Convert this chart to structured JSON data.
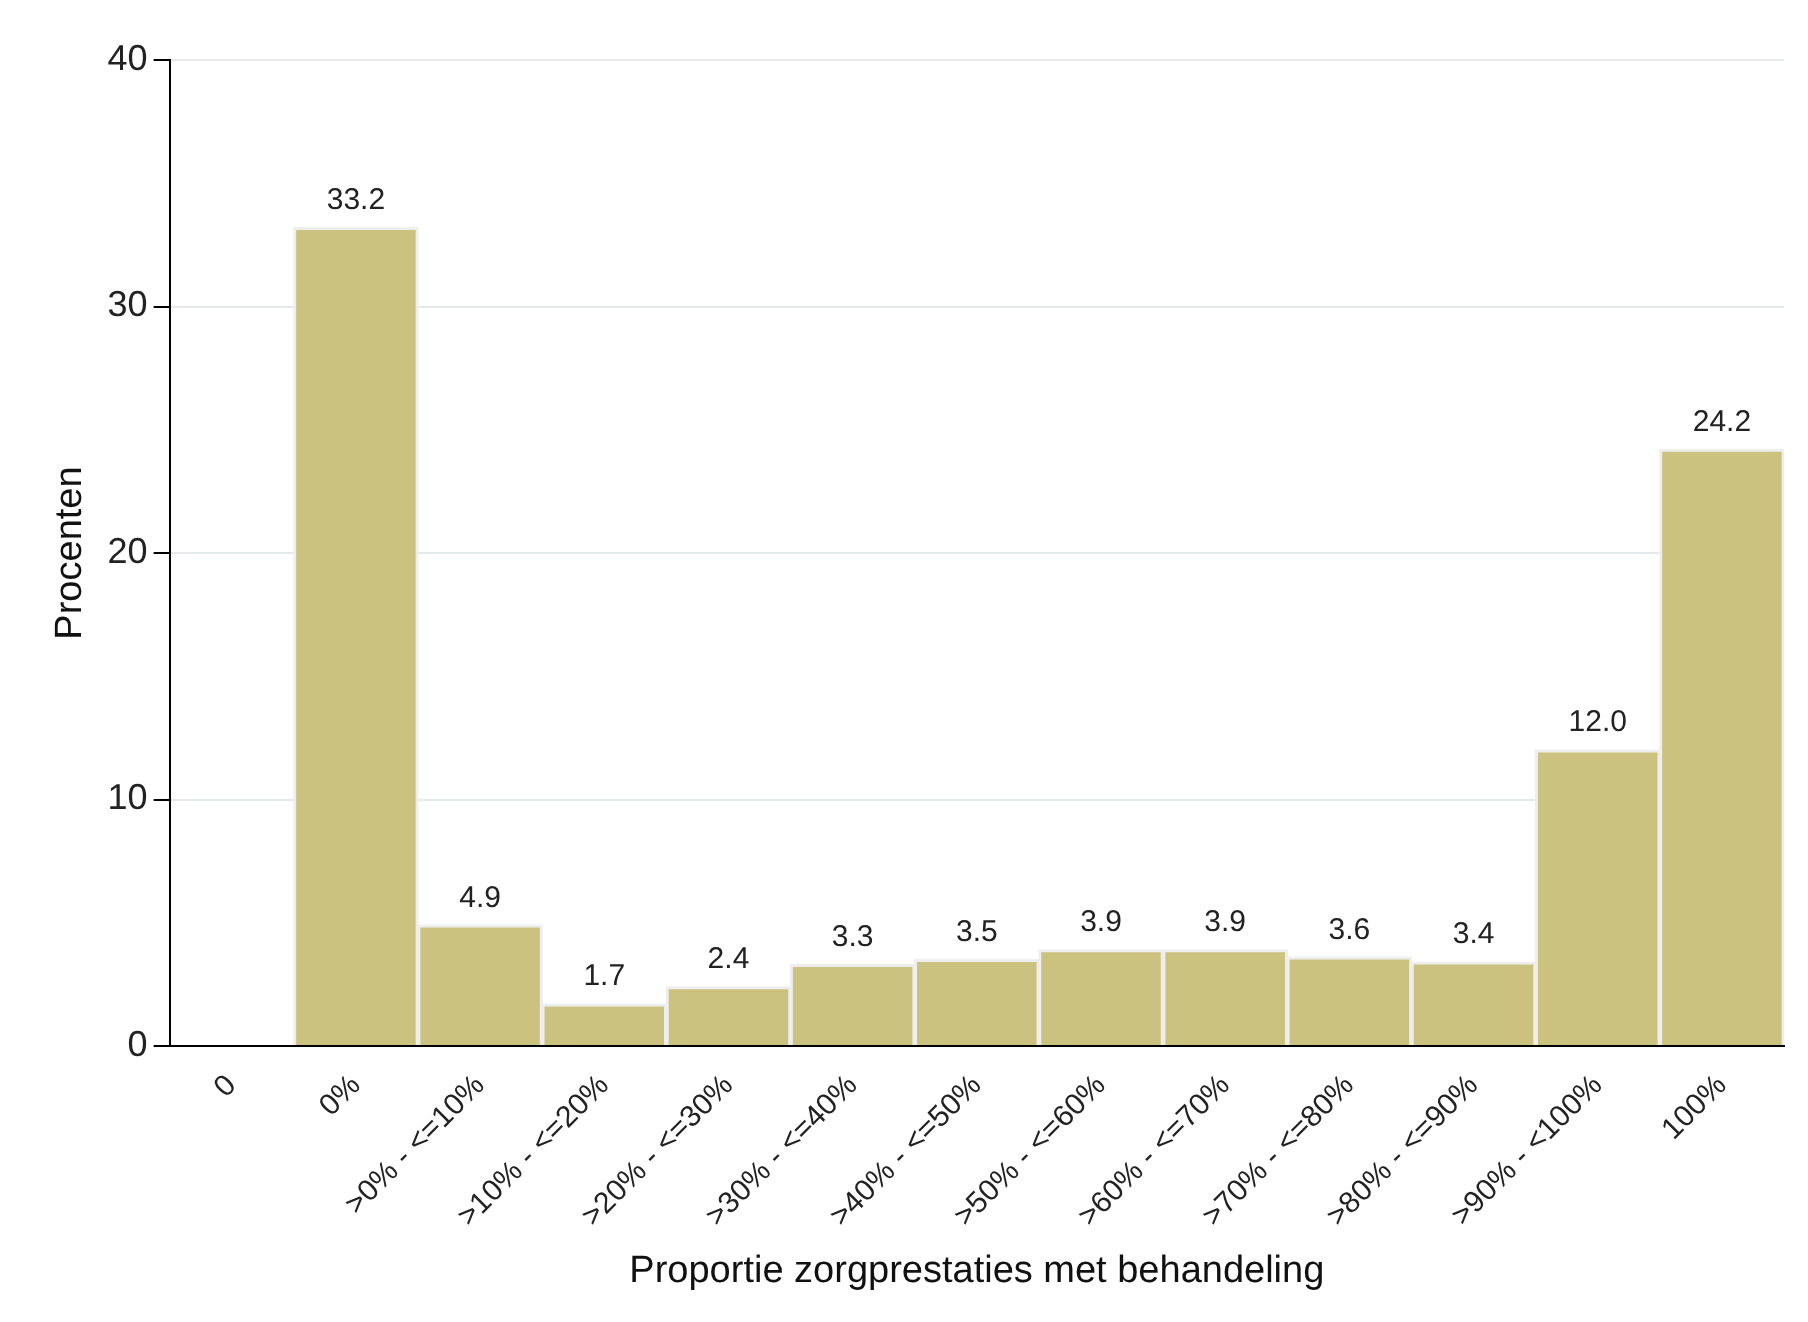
{
  "chart_data": {
    "type": "bar",
    "xlabel": "Proportie zorgprestaties met behandeling",
    "ylabel": "Procenten",
    "categories": [
      "0",
      "0%",
      ">0% - <=10%",
      ">10% - <=20%",
      ">20% - <=30%",
      ">30% - <=40%",
      ">40% - <=50%",
      ">50% - <=60%",
      ">60% - <=70%",
      ">70% - <=80%",
      ">80% - <=90%",
      ">90% - <100%",
      "100%"
    ],
    "values": [
      null,
      33.2,
      4.9,
      1.7,
      2.4,
      3.3,
      3.5,
      3.9,
      3.9,
      3.6,
      3.4,
      12.0,
      24.2
    ],
    "value_labels": [
      null,
      "33.2",
      "4.9",
      "1.7",
      "2.4",
      "3.3",
      "3.5",
      "3.9",
      "3.9",
      "3.6",
      "3.4",
      "12.0",
      "24.2"
    ],
    "color": "#cbc27f",
    "ylim": [
      0,
      40
    ],
    "yticks": [
      0,
      10,
      20,
      30,
      40
    ],
    "grid": "y",
    "legend": false
  }
}
